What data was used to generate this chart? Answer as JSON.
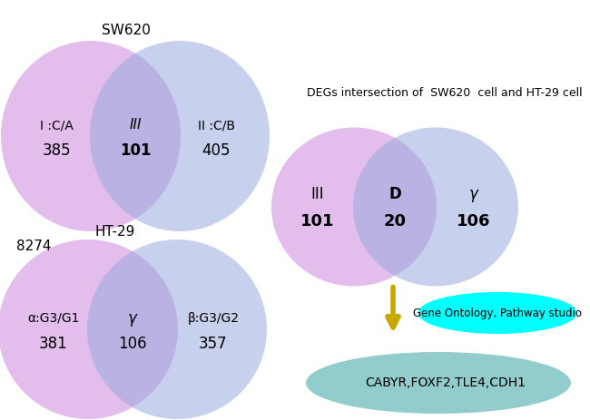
{
  "bg_color": "#ffffff",
  "sw620_label": "SW620",
  "ht29_label": "HT-29",
  "num_8274": "8274",
  "venn1_left_label": "I :C/A",
  "venn1_left_num": "385",
  "venn1_mid_label": "III",
  "venn1_mid_num": "101",
  "venn1_right_label": "II :C/B",
  "venn1_right_num": "405",
  "venn2_left_label": "α:G3/G1",
  "venn2_left_num": "381",
  "venn2_mid_label": "γ",
  "venn2_mid_num": "106",
  "venn2_right_label": "β:G3/G2",
  "venn2_right_num": "357",
  "degs_title": "DEGs intersection of  SW620  cell and HT-29 cell",
  "venn3_left_label": "III",
  "venn3_left_num": "101",
  "venn3_mid_label": "D",
  "venn3_mid_num": "20",
  "venn3_right_label": "γ",
  "venn3_right_num": "106",
  "cyan_ellipse_text": "Gene Ontology, Pathway studio",
  "teal_ellipse_text": "CABYR,FOXF2,TLE4,CDH1",
  "color_purple": "#CC88DD",
  "color_blue": "#99AADD",
  "color_cyan": "#00FFFF",
  "color_teal": "#80C4C4",
  "color_arrow": "#C8A800",
  "font_color": "#000000"
}
